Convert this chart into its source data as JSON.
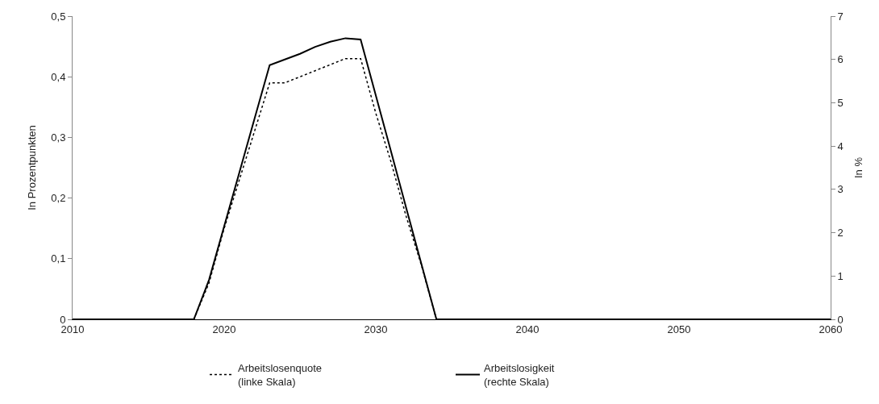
{
  "chart_data": {
    "type": "line",
    "ylabel": "In Prozentpunkten",
    "y2label": "In %",
    "x": [
      2010,
      2011,
      2012,
      2013,
      2014,
      2015,
      2016,
      2017,
      2018,
      2019,
      2020,
      2021,
      2022,
      2023,
      2024,
      2025,
      2026,
      2027,
      2028,
      2029,
      2030,
      2031,
      2032,
      2033,
      2034,
      2035,
      2036,
      2037,
      2038,
      2039,
      2040,
      2041,
      2042,
      2043,
      2044,
      2045,
      2046,
      2047,
      2048,
      2049,
      2050,
      2051,
      2052,
      2053,
      2054,
      2055,
      2056,
      2057,
      2058,
      2059,
      2060
    ],
    "series": [
      {
        "name": "Arbeitslosenquote\n(linke Skala)",
        "color": "#000000",
        "line_style": "dotted",
        "values": [
          0,
          0,
          0,
          0,
          0,
          0,
          0,
          0,
          0,
          0.06,
          0.15,
          0.23,
          0.31,
          0.39,
          0.39,
          0.4,
          0.41,
          0.42,
          0.43,
          0.43,
          0.34,
          0.26,
          0.17,
          0.09,
          0,
          0,
          0,
          0,
          0,
          0,
          0,
          0,
          0,
          0,
          0,
          0,
          0,
          0,
          0,
          0,
          0,
          0,
          0,
          0,
          0,
          0,
          0,
          0,
          0,
          0,
          0
        ]
      },
      {
        "name": "Arbeitslosigkeit\n(rechte Skala)",
        "color": "#000000",
        "line_style": "solid",
        "axis": "y2",
        "values": [
          0,
          0,
          0,
          0,
          0,
          0,
          0,
          0,
          0,
          0.91,
          2.15,
          3.39,
          4.63,
          5.87,
          6.0,
          6.13,
          6.29,
          6.41,
          6.49,
          6.46,
          5.17,
          3.88,
          2.58,
          1.29,
          0,
          0,
          0,
          0,
          0,
          0,
          0,
          0,
          0,
          0,
          0,
          0,
          0,
          0,
          0,
          0,
          0,
          0,
          0,
          0,
          0,
          0,
          0,
          0,
          0,
          0,
          0
        ]
      }
    ],
    "xlim": [
      2010,
      2060
    ],
    "xticks": [
      2010,
      2020,
      2030,
      2040,
      2050,
      2060
    ],
    "ylim": [
      0,
      0.5
    ],
    "yticks": [
      0,
      {
        "value": 0.1,
        "label": "0,1"
      },
      {
        "value": 0.2,
        "label": "0,2"
      },
      {
        "value": 0.3,
        "label": "0,3"
      },
      {
        "value": 0.4,
        "label": "0,4"
      },
      {
        "value": 0.5,
        "label": "0,5"
      }
    ],
    "y2lim": [
      0,
      7
    ],
    "y2ticks": [
      0,
      1,
      2,
      3,
      4,
      5,
      6,
      7
    ],
    "legend": "bottom",
    "marker": "none"
  }
}
